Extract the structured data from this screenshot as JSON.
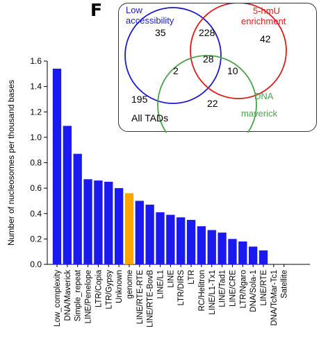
{
  "panel_label": "F",
  "venn": {
    "sets": [
      {
        "label_line1": "Low",
        "label_line2": "accessibility",
        "color": "#1a1acc"
      },
      {
        "label_line1": "5-hmU",
        "label_line2": "enrichment",
        "color": "#e01818"
      },
      {
        "label_line1": "DNA",
        "label_line2": "maverick",
        "color": "#4aa34a"
      }
    ],
    "regions": {
      "only_low_accessibility": "35",
      "only_5hmU": "42",
      "only_dna_maverick": "22",
      "low_and_5hmU": "228",
      "low_and_maverick": "2",
      "hmU_and_maverick": "10",
      "all_three": "28",
      "outside": "195"
    },
    "universe_label": "All TADs"
  },
  "chart_data": {
    "type": "bar",
    "ylabel": "Number of nucleosomes per thousand bases",
    "ylim": [
      0,
      1.6
    ],
    "yticks": [
      "0.0",
      "0.2",
      "0.4",
      "0.6",
      "0.8",
      "1.0",
      "1.2",
      "1.4",
      "1.6"
    ],
    "categories": [
      "Low_complexity",
      "DNA/Maverick",
      "Simple_repeat",
      "LINE/Penelope",
      "LTR/Copia",
      "LTR/Gypsy",
      "Unknown",
      "genome",
      "LINE/RTE-RTE",
      "LINE/RTE-BovB",
      "LINE/L1",
      "LINE",
      "LTR/DIRS",
      "LTR",
      "RC/Helitron",
      "LINE/L1-Tx1",
      "LINE/Tad1",
      "LINE/CRE",
      "LTR/Ngaro",
      "DNA/Sola-1",
      "LINE/RTE",
      "DNA/TcMar-Tc1",
      "Satellite"
    ],
    "values": [
      1.54,
      1.09,
      0.87,
      0.67,
      0.66,
      0.65,
      0.6,
      0.56,
      0.5,
      0.47,
      0.41,
      0.39,
      0.37,
      0.35,
      0.3,
      0.27,
      0.25,
      0.2,
      0.18,
      0.14,
      0.11,
      0.0,
      0.0
    ],
    "colors": {
      "bar": "#1a1af0",
      "highlight": "#ffa500"
    },
    "highlight_category": "genome"
  }
}
